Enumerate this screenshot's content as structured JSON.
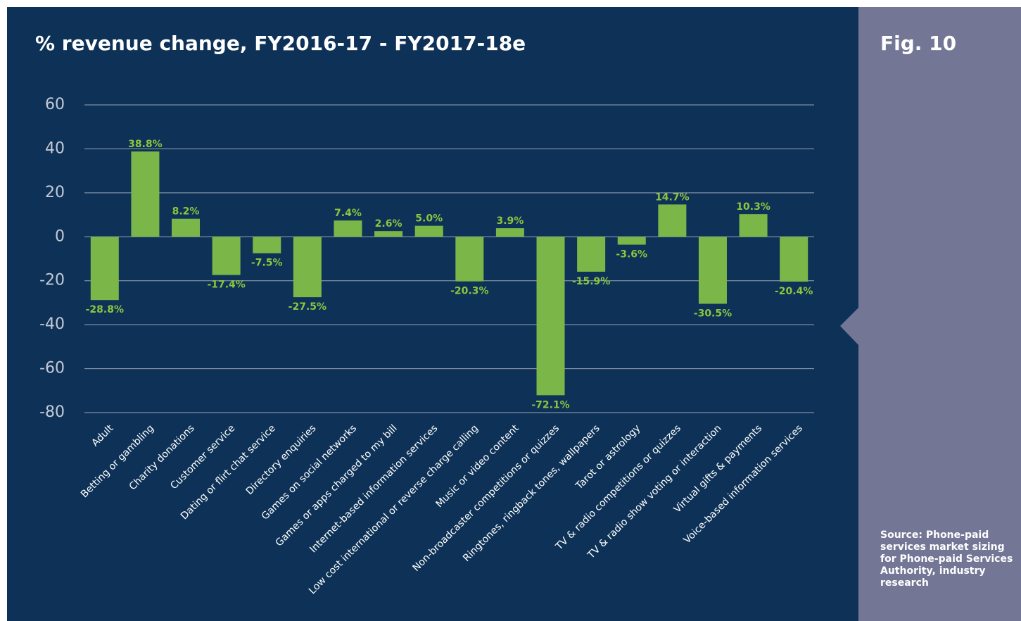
{
  "chart_data": {
    "type": "bar",
    "title": "% revenue change, FY2016-17 - FY2017-18e",
    "figure_label": "Fig. 10",
    "source": "Source: Phone-paid services market sizing for Phone-paid Services Authority, industry research",
    "categories": [
      "Adult",
      "Betting or gambling",
      "Charity donations",
      "Customer service",
      "Dating or flirt chat service",
      "Directory enquiries",
      "Games on social networks",
      "Games or apps charged to my bill",
      "Internet-based information services",
      "Low cost international or reverse charge calling",
      "Music or video content",
      "Non-broadcaster competitions or quizzes",
      "Ringtones, ringback tones, wallpapers",
      "Tarot or astrology",
      "TV & radio competitions or quizzes",
      "TV & radio show voting or interaction",
      "Virtual gifts & payments",
      "Voice-based information services"
    ],
    "values": [
      -28.8,
      38.8,
      8.2,
      -17.4,
      -7.5,
      -27.5,
      7.4,
      2.6,
      5.0,
      -20.3,
      3.9,
      -72.1,
      -15.9,
      -3.6,
      14.7,
      -30.5,
      10.3,
      -20.4
    ],
    "value_labels": [
      "-28.8%",
      "38.8%",
      "8.2%",
      "-17.4%",
      "-7.5%",
      "-27.5%",
      "7.4%",
      "2.6%",
      "5.0%",
      "-20.3%",
      "3.9%",
      "-72.1%",
      "-15.9%",
      "-3.6%",
      "14.7%",
      "-30.5%",
      "10.3%",
      "-20.4%"
    ],
    "color": "#7ab648",
    "ylim": [
      -80,
      60
    ],
    "yticks": [
      -80,
      -60,
      -40,
      -20,
      0,
      20,
      40,
      60
    ],
    "grid": true
  }
}
